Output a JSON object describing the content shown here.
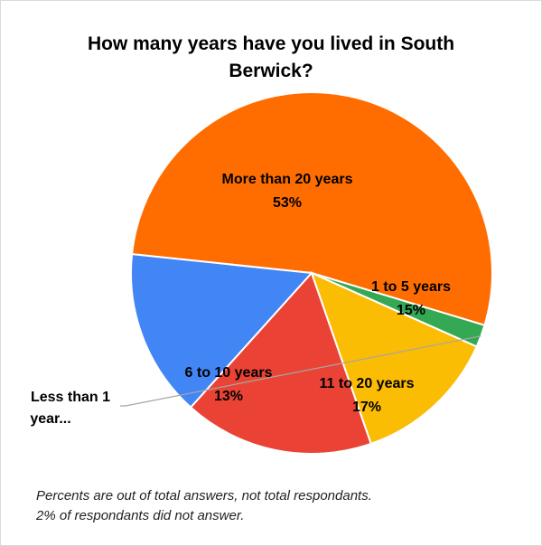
{
  "chart_data": {
    "type": "pie",
    "title": "How many years have you lived in South Berwick?",
    "slices": [
      {
        "label": "More than 20 years",
        "value": 53,
        "value_label": "53%",
        "color": "#ff6d01"
      },
      {
        "label": "1 to 5 years",
        "value": 15,
        "value_label": "15%",
        "color": "#4285f4"
      },
      {
        "label": "11 to 20 years",
        "value": 17,
        "value_label": "17%",
        "color": "#ea4335"
      },
      {
        "label": "6 to 10 years",
        "value": 13,
        "value_label": "13%",
        "color": "#fbbc04"
      },
      {
        "label": "Less than 1 year...",
        "value": 2,
        "value_label": "",
        "color": "#34a853"
      }
    ],
    "legend": "none"
  },
  "notes": [
    "Percents are out of total answers, not total respondants.",
    "2% of respondants did not answer."
  ]
}
